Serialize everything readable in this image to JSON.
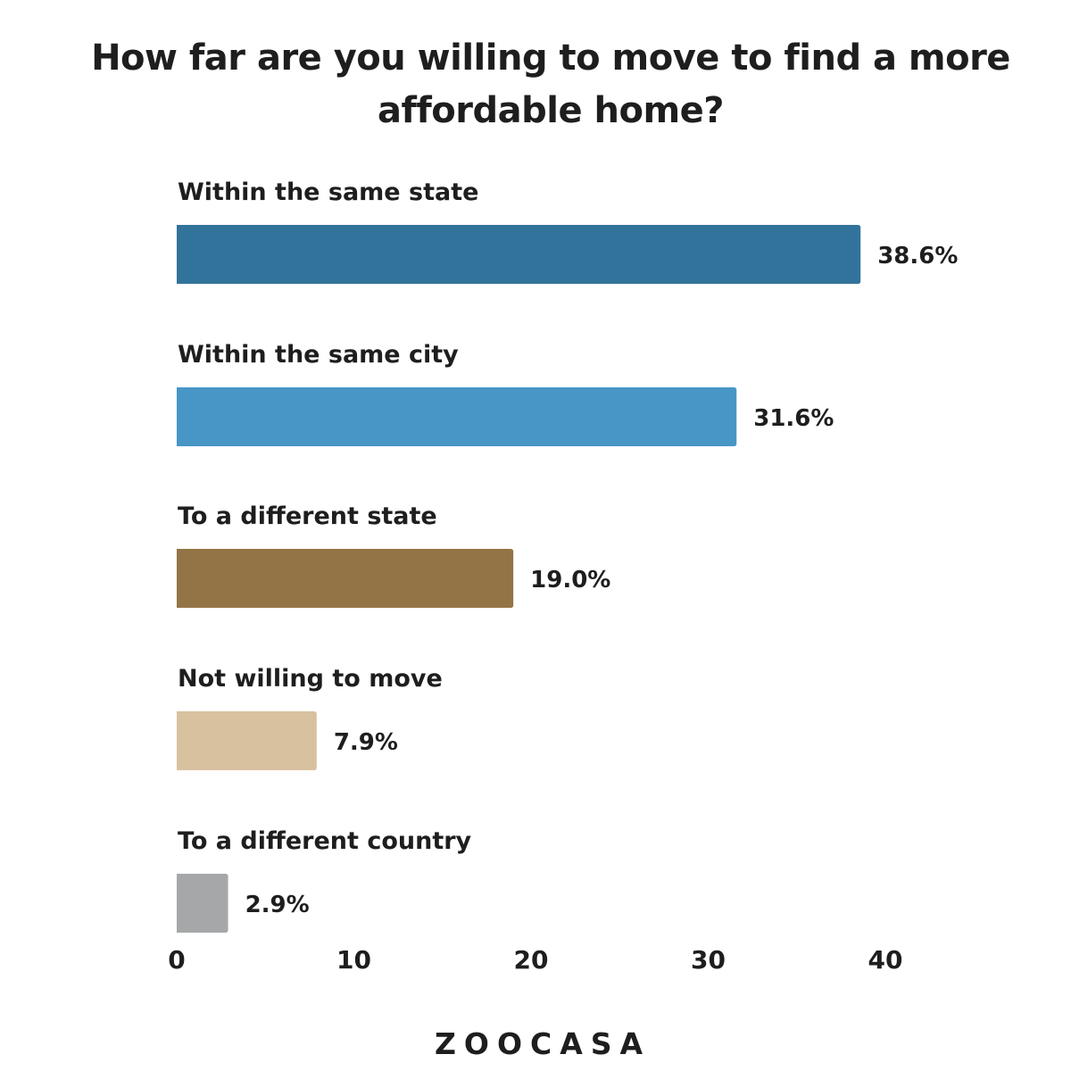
{
  "chart_data": {
    "type": "bar",
    "orientation": "horizontal",
    "title": "How far are you willing to move to find a more affordable home?",
    "categories": [
      "Within the same state",
      "Within the same city",
      "To a different state",
      "Not willing to move",
      "To a different country"
    ],
    "values": [
      38.6,
      31.6,
      19.0,
      7.9,
      2.9
    ],
    "data_labels": [
      "38.6%",
      "31.6%",
      "19.0%",
      "7.9%",
      "2.9%"
    ],
    "colors": [
      "#32739c",
      "#4796c6",
      "#937446",
      "#d8c19f",
      "#a6a7a9"
    ],
    "xlim": [
      0,
      40
    ],
    "xticks": [
      "0",
      "10",
      "20",
      "30",
      "40"
    ],
    "xlabel": "",
    "ylabel": "",
    "grid": false,
    "legend": "none"
  },
  "logo": "ZOOCASA"
}
